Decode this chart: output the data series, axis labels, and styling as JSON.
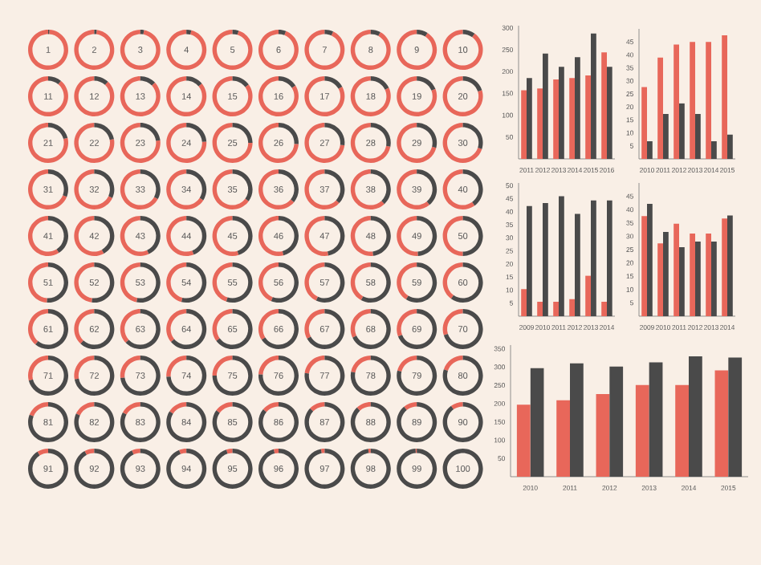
{
  "chart_data": [
    {
      "type": "other",
      "values": [
        1,
        2,
        3,
        4,
        5,
        6,
        7,
        8,
        9,
        10,
        11,
        12,
        13,
        14,
        15,
        16,
        17,
        18,
        19,
        20,
        21,
        22,
        23,
        24,
        25,
        26,
        27,
        28,
        29,
        30,
        31,
        32,
        33,
        34,
        35,
        36,
        37,
        38,
        39,
        40,
        41,
        42,
        43,
        44,
        45,
        46,
        47,
        48,
        49,
        50,
        51,
        52,
        53,
        54,
        55,
        56,
        57,
        58,
        59,
        60,
        61,
        62,
        63,
        64,
        65,
        66,
        67,
        68,
        69,
        70,
        71,
        72,
        73,
        74,
        75,
        76,
        77,
        78,
        79,
        80,
        81,
        82,
        83,
        84,
        85,
        86,
        87,
        88,
        89,
        90,
        91,
        92,
        93,
        94,
        95,
        96,
        97,
        98,
        99,
        100
      ],
      "color": "#4a4a4a",
      "data_labels": true
    },
    {
      "type": "bar",
      "categories": [
        "2011",
        "2012",
        "2013",
        "2014",
        "2015",
        "2016"
      ],
      "ylim": [
        0,
        305
      ],
      "yticks": [
        50,
        100,
        150,
        200,
        250,
        300
      ],
      "series": [
        {
          "color": "#e8675a",
          "values": [
            157,
            161,
            182,
            185,
            191,
            244
          ]
        },
        {
          "color": "#4a4a4a",
          "values": [
            185,
            241,
            211,
            233,
            287,
            211
          ]
        }
      ]
    },
    {
      "type": "bar",
      "categories": [
        "2010",
        "2011",
        "2012",
        "2013",
        "2014",
        "2015"
      ],
      "ylim": [
        0,
        50
      ],
      "yticks": [
        5,
        10,
        15,
        20,
        25,
        30,
        35,
        40,
        45
      ],
      "series": [
        {
          "color": "#e8675a",
          "values": [
            27.6,
            39,
            44,
            45,
            45,
            47.5
          ]
        },
        {
          "color": "#4a4a4a",
          "values": [
            6.8,
            17.3,
            21.4,
            17.3,
            6.8,
            9.3
          ]
        }
      ]
    },
    {
      "type": "bar",
      "categories": [
        "2009",
        "2010",
        "2011",
        "2012",
        "2013",
        "2014"
      ],
      "ylim": [
        0,
        51
      ],
      "yticks": [
        5,
        10,
        15,
        20,
        25,
        30,
        35,
        40,
        45,
        50
      ],
      "series": [
        {
          "color": "#e8675a",
          "values": [
            10.4,
            5.5,
            5.5,
            6.5,
            15.5,
            5.5
          ]
        },
        {
          "color": "#4a4a4a",
          "values": [
            42.2,
            43.3,
            45.9,
            39.2,
            44.3,
            44.3
          ]
        }
      ]
    },
    {
      "type": "bar",
      "categories": [
        "2009",
        "2010",
        "2011",
        "2012",
        "2013",
        "2014"
      ],
      "ylim": [
        0,
        50
      ],
      "yticks": [
        5,
        10,
        15,
        20,
        25,
        30,
        35,
        40,
        45
      ],
      "series": [
        {
          "color": "#e8675a",
          "values": [
            37.6,
            27.3,
            34.7,
            31,
            31,
            36.7
          ]
        },
        {
          "color": "#4a4a4a",
          "values": [
            42.2,
            31.6,
            25.9,
            28,
            28,
            37.8
          ]
        }
      ]
    },
    {
      "type": "bar",
      "categories": [
        "2010",
        "2011",
        "2012",
        "2013",
        "2014",
        "2015"
      ],
      "ylim": [
        0,
        360
      ],
      "yticks": [
        50,
        100,
        150,
        200,
        250,
        300,
        350
      ],
      "series": [
        {
          "color": "#e8675a",
          "values": [
            197,
            209,
            226,
            251,
            251,
            291
          ]
        },
        {
          "color": "#4a4a4a",
          "values": [
            297,
            310,
            301,
            313,
            329,
            326
          ]
        }
      ]
    }
  ]
}
